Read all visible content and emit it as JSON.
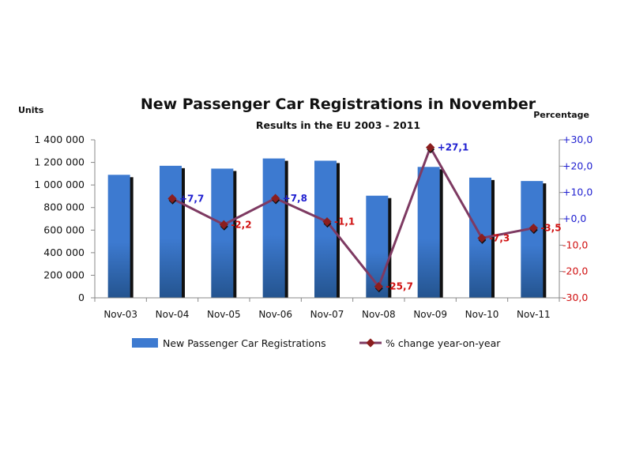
{
  "colors": {
    "bar": "#3d7ad0",
    "bar_dark": "#24548f",
    "line": "#7e3a62",
    "marker": "#8b1e1e",
    "positive": "#1f1fd0",
    "negative": "#d01010"
  },
  "chart_data": {
    "type": "bar",
    "title": "New Passenger Car Registrations in November",
    "subtitle": "Results in the EU 2003 - 2011",
    "ylabel_left": "Units",
    "ylabel_right": "Percentage",
    "categories": [
      "Nov-03",
      "Nov-04",
      "Nov-05",
      "Nov-06",
      "Nov-07",
      "Nov-08",
      "Nov-09",
      "Nov-10",
      "Nov-11"
    ],
    "ylim_left": [
      0,
      1400000
    ],
    "ylim_right": [
      -30,
      30
    ],
    "left_ticks": [
      "0",
      "200 000",
      "400 000",
      "600 000",
      "800 000",
      "1 000 000",
      "1 200 000",
      "1 400 000"
    ],
    "right_ticks": [
      "-30,0",
      "-20,0",
      "-10,0",
      "+0,0",
      "+10,0",
      "+20,0",
      "+30,0"
    ],
    "legend_position": "bottom",
    "grid": false,
    "series": [
      {
        "name": "New Passenger Car Registrations",
        "type": "bar",
        "axis": "left",
        "values": [
          1090000,
          1170000,
          1145000,
          1235000,
          1215000,
          905000,
          1160000,
          1065000,
          1035000
        ]
      },
      {
        "name": "% change year-on-year",
        "type": "line",
        "axis": "right",
        "values": [
          null,
          7.7,
          -2.2,
          7.8,
          -1.1,
          -25.7,
          27.1,
          -7.3,
          -3.5
        ],
        "labels": [
          null,
          "+7,7",
          "-2,2",
          "+7,8",
          "-1,1",
          "-25,7",
          "+27,1",
          "-7,3",
          "-3,5"
        ]
      }
    ]
  }
}
